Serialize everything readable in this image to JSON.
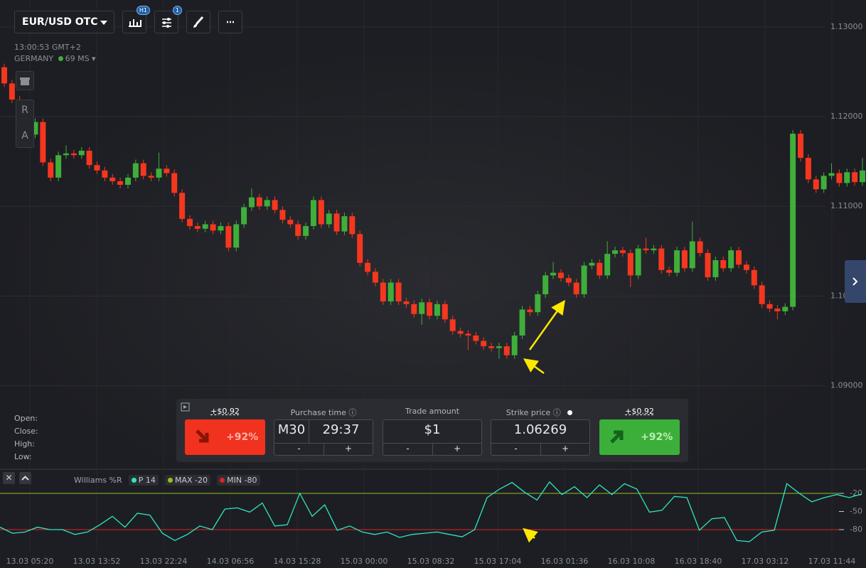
{
  "header": {
    "symbol": "EUR/USD OTC",
    "timeframe": "H1",
    "indicator_count": "1",
    "server_time": "13:00:53 GMT+2",
    "server": "GERMANY",
    "ping": "69 MS"
  },
  "side_tools": {
    "r": "R",
    "a": "A"
  },
  "ohlc_labels": [
    "Open:",
    "Close:",
    "High:",
    "Low:"
  ],
  "trade_panel": {
    "put_payout": "+$0.92",
    "put_percent": "+92%",
    "purchase_time_label": "Purchase time",
    "expiry_mode": "M30",
    "expiry_time": "29:37",
    "trade_amount_label": "Trade amount",
    "amount": "$1",
    "strike_label": "Strike price",
    "strike": "1.06269",
    "minus": "-",
    "plus": "+",
    "call_payout": "+$0.92",
    "call_percent": "+92%"
  },
  "chart_data": [
    {
      "type": "candlestick",
      "up_color": "#3fae3a",
      "down_color": "#f5371f",
      "grid": true,
      "ylim": [
        1.0807,
        1.133
      ],
      "yticks": [
        {
          "value": 1.13,
          "label": "1.13000"
        },
        {
          "value": 1.12,
          "label": "1.12000"
        },
        {
          "value": 1.11,
          "label": "1.11000"
        },
        {
          "value": 1.1,
          "label": "1.10000"
        },
        {
          "value": 1.09,
          "label": "1.09000"
        }
      ],
      "open": [
        1.1255,
        1.1237,
        1.1219,
        1.1202,
        1.118,
        1.1194,
        1.1149,
        1.1132,
        1.1157,
        1.1159,
        1.1157,
        1.1162,
        1.1146,
        1.114,
        1.1132,
        1.1128,
        1.1124,
        1.1132,
        1.1148,
        1.1134,
        1.1132,
        1.1142,
        1.1137,
        1.1115,
        1.1086,
        1.1078,
        1.1075,
        1.108,
        1.1073,
        1.1078,
        1.1054,
        1.108,
        1.1099,
        1.111,
        1.11,
        1.1107,
        1.1096,
        1.1085,
        1.108,
        1.1067,
        1.1078,
        1.1107,
        1.108,
        1.1092,
        1.1072,
        1.1089,
        1.1069,
        1.1037,
        1.1027,
        1.1015,
        1.0994,
        1.1015,
        1.0994,
        1.0991,
        1.098,
        1.0993,
        1.0978,
        1.0991,
        1.0974,
        1.0961,
        1.0958,
        1.0956,
        1.095,
        1.0944,
        1.0942,
        1.0944,
        1.0934,
        1.0956,
        1.0985,
        1.0982,
        1.1002,
        1.1023,
        1.1026,
        1.102,
        1.1015,
        1.1002,
        1.1034,
        1.1037,
        1.1023,
        1.1047,
        1.1051,
        1.1048,
        1.1023,
        1.1053,
        1.1051,
        1.1053,
        1.1029,
        1.1026,
        1.1051,
        1.1031,
        1.1061,
        1.1048,
        1.1021,
        1.104,
        1.1031,
        1.1051,
        1.1035,
        1.1029,
        1.1012,
        1.0991,
        1.0986,
        1.0983,
        1.0988,
        1.1181,
        1.1154,
        1.113,
        1.1119,
        1.1134,
        1.1137,
        1.1126,
        1.1138,
        1.1127
      ],
      "high": [
        1.1259,
        1.1241,
        1.1223,
        1.1206,
        1.1198,
        1.1198,
        1.1153,
        1.1161,
        1.1168,
        1.1163,
        1.1166,
        1.1166,
        1.115,
        1.1144,
        1.1136,
        1.1132,
        1.1136,
        1.1152,
        1.1152,
        1.1138,
        1.116,
        1.1146,
        1.1141,
        1.1119,
        1.109,
        1.1082,
        1.1084,
        1.1084,
        1.1082,
        1.1082,
        1.1084,
        1.1103,
        1.112,
        1.1114,
        1.1111,
        1.1111,
        1.11,
        1.1089,
        1.1084,
        1.1082,
        1.1111,
        1.1111,
        1.1096,
        1.1096,
        1.1093,
        1.1093,
        1.1073,
        1.1041,
        1.1031,
        1.1019,
        1.1019,
        1.1019,
        1.0998,
        1.0995,
        1.0997,
        1.0997,
        1.0995,
        1.0995,
        1.0978,
        1.0965,
        1.0962,
        1.096,
        1.0954,
        1.0948,
        1.0948,
        1.0948,
        1.096,
        1.0989,
        1.0989,
        1.1006,
        1.1027,
        1.1038,
        1.103,
        1.1024,
        1.1019,
        1.1038,
        1.1041,
        1.1041,
        1.1061,
        1.1055,
        1.1055,
        1.1052,
        1.1057,
        1.1065,
        1.1057,
        1.1057,
        1.1033,
        1.1055,
        1.1055,
        1.1083,
        1.1065,
        1.1052,
        1.1044,
        1.1044,
        1.1055,
        1.1055,
        1.1039,
        1.1033,
        1.1016,
        1.0995,
        1.099,
        1.0992,
        1.1185,
        1.1185,
        1.1158,
        1.1134,
        1.1138,
        1.1148,
        1.1141,
        1.1142,
        1.1142,
        1.1154
      ],
      "low": [
        1.1233,
        1.1215,
        1.1198,
        1.1176,
        1.1176,
        1.1145,
        1.1128,
        1.1128,
        1.1153,
        1.1153,
        1.1153,
        1.1142,
        1.1136,
        1.1128,
        1.1124,
        1.112,
        1.112,
        1.1128,
        1.113,
        1.1128,
        1.1128,
        1.1133,
        1.1111,
        1.1082,
        1.1074,
        1.1071,
        1.1071,
        1.1069,
        1.1069,
        1.105,
        1.105,
        1.1076,
        1.1095,
        1.1096,
        1.1096,
        1.1092,
        1.1081,
        1.1076,
        1.1063,
        1.1063,
        1.1074,
        1.1076,
        1.1076,
        1.1068,
        1.1068,
        1.1065,
        1.1033,
        1.1023,
        1.1011,
        1.099,
        1.099,
        1.099,
        1.0987,
        1.0976,
        1.0968,
        1.0974,
        1.0974,
        1.097,
        1.0957,
        1.0954,
        1.094,
        1.0946,
        1.094,
        1.0938,
        1.093,
        1.093,
        1.093,
        1.0952,
        1.0978,
        1.0978,
        1.0998,
        1.1019,
        1.1016,
        1.1011,
        1.0998,
        1.0998,
        1.103,
        1.1019,
        1.1019,
        1.1043,
        1.1044,
        1.101,
        1.1019,
        1.1047,
        1.1047,
        1.1025,
        1.1022,
        1.1022,
        1.1027,
        1.1027,
        1.1044,
        1.1017,
        1.1017,
        1.1027,
        1.1027,
        1.1031,
        1.1025,
        1.1008,
        1.0987,
        1.0982,
        1.0974,
        1.0979,
        1.0984,
        1.115,
        1.1126,
        1.1115,
        1.1115,
        1.113,
        1.1122,
        1.1122,
        1.1123,
        1.1123
      ],
      "close": [
        1.1237,
        1.1219,
        1.1202,
        1.118,
        1.1194,
        1.1149,
        1.1132,
        1.1157,
        1.1159,
        1.1157,
        1.1162,
        1.1146,
        1.114,
        1.1132,
        1.1128,
        1.1124,
        1.1132,
        1.1148,
        1.1134,
        1.1132,
        1.1142,
        1.1137,
        1.1115,
        1.1086,
        1.1078,
        1.1075,
        1.108,
        1.1073,
        1.1078,
        1.1054,
        1.108,
        1.1099,
        1.111,
        1.11,
        1.1107,
        1.1096,
        1.1085,
        1.108,
        1.1067,
        1.1078,
        1.1107,
        1.108,
        1.1092,
        1.1072,
        1.1089,
        1.1069,
        1.1037,
        1.1027,
        1.1015,
        1.0994,
        1.1015,
        1.0994,
        1.0991,
        1.098,
        1.0993,
        1.0978,
        1.0991,
        1.0974,
        1.0961,
        1.0958,
        1.0956,
        1.095,
        1.0944,
        1.0942,
        1.0944,
        1.0934,
        1.0956,
        1.0985,
        1.0982,
        1.1002,
        1.1023,
        1.1026,
        1.102,
        1.1015,
        1.1002,
        1.1034,
        1.1037,
        1.1023,
        1.1047,
        1.1051,
        1.1048,
        1.1023,
        1.1053,
        1.1051,
        1.1053,
        1.1029,
        1.1026,
        1.1051,
        1.1031,
        1.1061,
        1.1048,
        1.1021,
        1.104,
        1.1031,
        1.1051,
        1.1035,
        1.1029,
        1.1012,
        1.0991,
        1.0986,
        1.0983,
        1.0988,
        1.1181,
        1.1154,
        1.113,
        1.1119,
        1.1134,
        1.1137,
        1.1126,
        1.1138,
        1.1127,
        1.114
      ]
    },
    {
      "type": "line",
      "title": "Williams %R",
      "color": "#2ee6c4",
      "period_label": "P",
      "period": 14,
      "max_label": "MAX",
      "max": -20,
      "min_label": "MIN",
      "min": -80,
      "max_color": "#8dc21f",
      "min_color": "#e0221f",
      "ylim": [
        -100,
        0
      ],
      "yticks": [
        -20,
        -50,
        -80
      ],
      "values": [
        -76,
        -86,
        -84,
        -76,
        -80,
        -80,
        -88,
        -84,
        -72,
        -58,
        -76,
        -53,
        -56,
        -86,
        -98,
        -88,
        -74,
        -80,
        -46,
        -44,
        -51,
        -36,
        -74,
        -72,
        -20,
        -58,
        -39,
        -81,
        -74,
        -84,
        -88,
        -84,
        -93,
        -88,
        -86,
        -84,
        -88,
        -92,
        -80,
        -27,
        -13,
        -2,
        -18,
        -31,
        -1,
        -22,
        -9,
        -27,
        -6,
        -22,
        -4,
        -13,
        -51,
        -48,
        -25,
        -27,
        -81,
        -62,
        -60,
        -98,
        -100,
        -84,
        -81,
        -4,
        -20,
        -34,
        -27,
        -22,
        -27,
        -21
      ],
      "xticks": [
        "13.03 05:20",
        "13.03 13:52",
        "13.03 22:24",
        "14.03 06:56",
        "14.03 15:28",
        "15.03 00:00",
        "15.03 08:32",
        "15.03 17:04",
        "16.03 01:36",
        "16.03 10:08",
        "16.03 18:40",
        "17.03 03:12",
        "17.03 11:44"
      ]
    }
  ]
}
